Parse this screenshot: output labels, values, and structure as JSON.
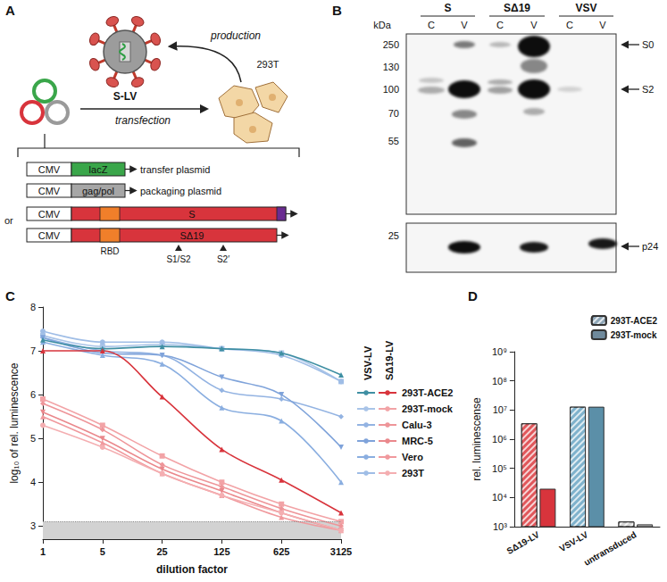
{
  "diagram": {
    "panel_label": "A",
    "particle": "S-LV",
    "production": "production",
    "transfection": "transfection",
    "cell": "293T",
    "constructs": [
      {
        "promoter": "CMV",
        "insert": "lacZ",
        "name": "transfer plasmid"
      },
      {
        "promoter": "CMV",
        "insert": "gag/pol",
        "name": "packaging plasmid"
      }
    ],
    "separator": "or",
    "spike_constructs": [
      {
        "promoter": "CMV",
        "insert": "S"
      },
      {
        "promoter": "CMV",
        "insert": "SΔ19"
      }
    ],
    "domain": "RBD",
    "sites": [
      "S1/S2",
      "S2′"
    ]
  },
  "blot": {
    "panel_label": "B",
    "groups": [
      "S",
      "SΔ19",
      "VSV"
    ],
    "lanes": [
      "C",
      "V"
    ],
    "unit": "kDa",
    "markers_upper": [
      250,
      130,
      100,
      70,
      55
    ],
    "markers_lower": [
      25
    ],
    "bands": [
      "S0",
      "S2",
      "p24"
    ]
  },
  "chart_data": [
    {
      "panel_label": "C",
      "type": "line",
      "x_label": "dilution factor",
      "y_label": "log₁₀ of rel. luminescence",
      "log": "x",
      "grid": false,
      "x": [
        1,
        5,
        25,
        125,
        625,
        3125
      ],
      "xlim": [
        1,
        3125
      ],
      "xticks": [
        1,
        5,
        25,
        125,
        625,
        3125
      ],
      "ylim": [
        2.7,
        8
      ],
      "yticks": [
        3,
        4,
        5,
        6,
        7,
        8
      ],
      "background_level": 3.1,
      "legend_columns": [
        "VSV-LV",
        "SΔ19-LV"
      ],
      "series": [
        {
          "group": "VSV-LV",
          "name": "293T-ACE2",
          "color": "#3f8fa3",
          "marker": "triangle",
          "values": [
            7.25,
            7.05,
            7.1,
            7.05,
            6.95,
            6.45
          ]
        },
        {
          "group": "VSV-LV",
          "name": "293T-mock",
          "color": "#a9c4e8",
          "marker": "square",
          "values": [
            7.35,
            7.1,
            7.15,
            7.05,
            6.95,
            6.3
          ]
        },
        {
          "group": "VSV-LV",
          "name": "Calu-3",
          "color": "#93b3e2",
          "marker": "diamond",
          "values": [
            7.3,
            7.0,
            6.9,
            6.1,
            5.9,
            5.5
          ]
        },
        {
          "group": "VSV-LV",
          "name": "MRC-5",
          "color": "#7fa3da",
          "marker": "triangle-down",
          "values": [
            7.3,
            6.95,
            6.9,
            6.4,
            6.0,
            4.8
          ]
        },
        {
          "group": "VSV-LV",
          "name": "Vero",
          "color": "#8aaee0",
          "marker": "triangle",
          "values": [
            7.2,
            6.9,
            6.7,
            5.7,
            5.4,
            4.0
          ]
        },
        {
          "group": "VSV-LV",
          "name": "293T",
          "color": "#9fbde6",
          "marker": "circle",
          "values": [
            7.45,
            7.2,
            7.2,
            7.05,
            6.9,
            6.3
          ]
        },
        {
          "group": "SΔ19-LV",
          "name": "293T-ACE2",
          "color": "#d8343c",
          "marker": "triangle",
          "values": [
            7.0,
            7.0,
            5.95,
            4.75,
            4.05,
            3.3
          ]
        },
        {
          "group": "SΔ19-LV",
          "name": "293T-mock",
          "color": "#f2a3a6",
          "marker": "square",
          "values": [
            5.9,
            5.3,
            4.6,
            4.0,
            3.5,
            3.1
          ]
        },
        {
          "group": "SΔ19-LV",
          "name": "Calu-3",
          "color": "#ee9599",
          "marker": "diamond",
          "values": [
            5.8,
            5.2,
            4.4,
            3.9,
            3.4,
            3.0
          ]
        },
        {
          "group": "SΔ19-LV",
          "name": "MRC-5",
          "color": "#ea888c",
          "marker": "triangle-down",
          "values": [
            5.6,
            5.0,
            4.3,
            3.8,
            3.3,
            2.9
          ]
        },
        {
          "group": "SΔ19-LV",
          "name": "Vero",
          "color": "#f0999d",
          "marker": "triangle",
          "values": [
            5.5,
            4.9,
            4.2,
            3.7,
            3.2,
            2.9
          ]
        },
        {
          "group": "SΔ19-LV",
          "name": "293T",
          "color": "#f4aeb1",
          "marker": "circle",
          "values": [
            5.3,
            4.8,
            4.2,
            3.7,
            3.3,
            2.9
          ]
        }
      ]
    },
    {
      "panel_label": "D",
      "type": "bar",
      "y_label": "rel. luminescense",
      "log": "y",
      "grid": false,
      "legend": "top-right",
      "categories": [
        "SΔ19-LV",
        "VSV-LV",
        "untransduced"
      ],
      "ylim": [
        1000,
        1000000000
      ],
      "yticks": [
        {
          "value": 1000,
          "label": "10³"
        },
        {
          "value": 10000,
          "label": "10⁴"
        },
        {
          "value": 100000,
          "label": "10⁵"
        },
        {
          "value": 1000000,
          "label": "10⁶"
        },
        {
          "value": 10000000,
          "label": "10⁷"
        },
        {
          "value": 100000000,
          "label": "10⁸"
        },
        {
          "value": 1000000000,
          "label": "10⁹"
        }
      ],
      "series": [
        {
          "name": "293T-ACE2",
          "color": "#8fa7b8",
          "colors": [
            "#e0575b",
            "#7fb2cc",
            "#d6d6d6"
          ],
          "values": [
            3500000,
            13000000,
            1500
          ]
        },
        {
          "name": "293T-mock",
          "color": "#6f8a9c",
          "colors": [
            "#d8343c",
            "#5b8fa8",
            "#bdbdbd"
          ],
          "values": [
            20000,
            13000000,
            1200
          ]
        }
      ]
    }
  ]
}
